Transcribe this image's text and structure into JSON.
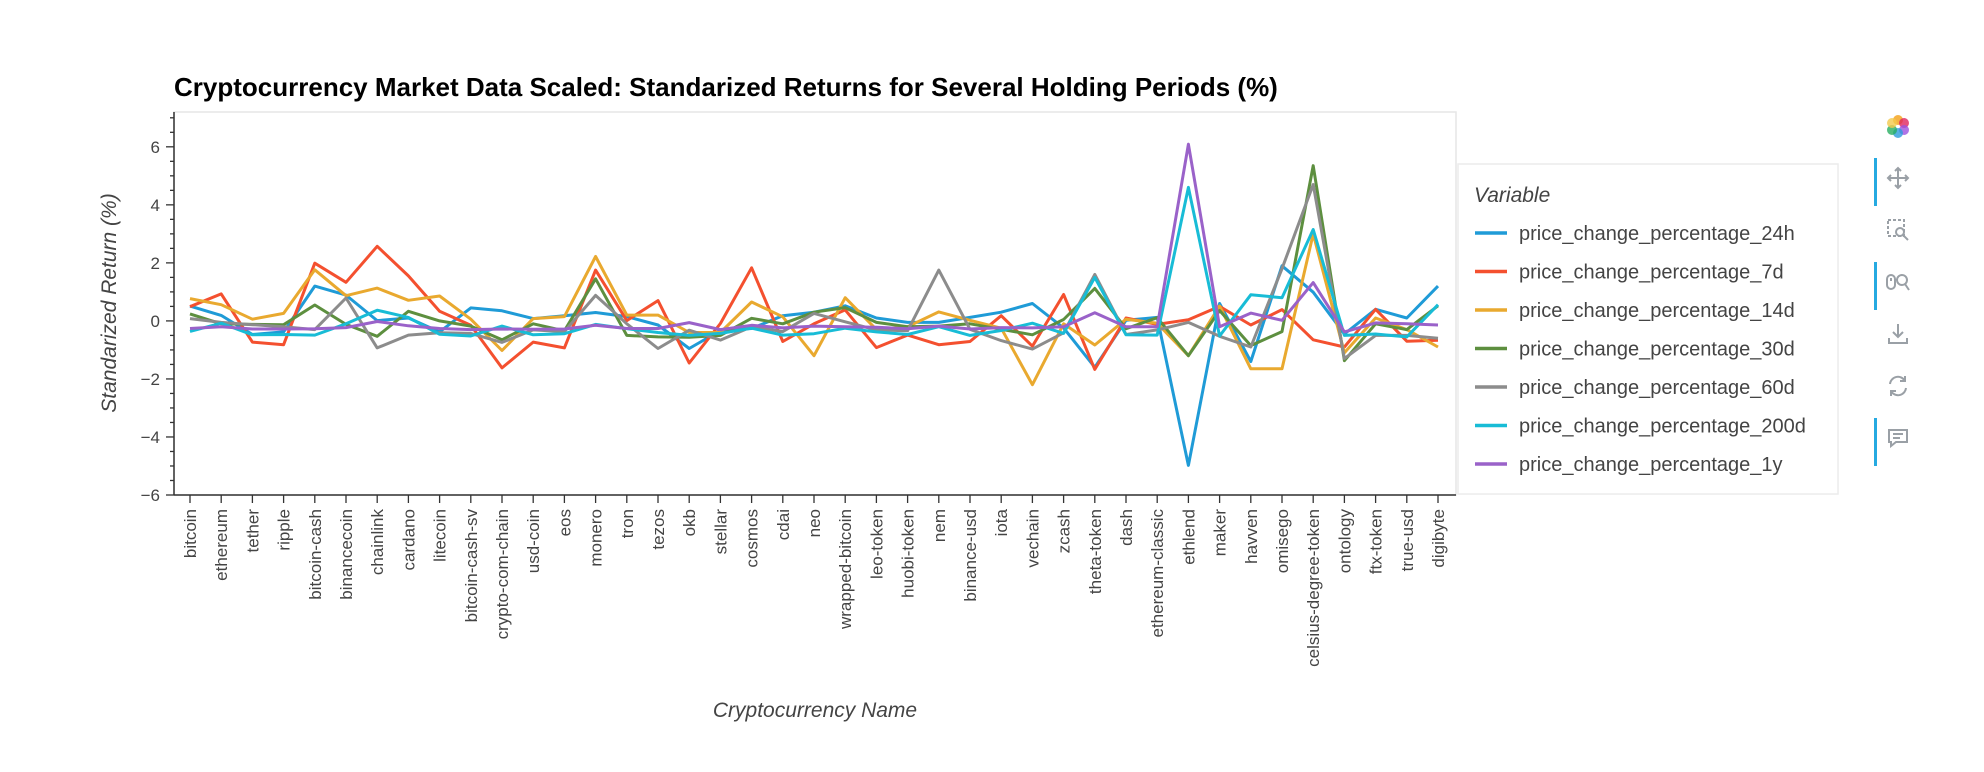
{
  "chart_data": {
    "type": "line",
    "title": "Cryptocurrency Market Data Scaled: Standarized Returns for Several Holding Periods (%)",
    "xlabel": "Cryptocurrency Name",
    "ylabel": "Standarized Return (%)",
    "ylim": [
      -6,
      7.2
    ],
    "yticks": [
      -6,
      -4,
      -2,
      0,
      2,
      4,
      6
    ],
    "grid": false,
    "legend_title": "Variable",
    "legend_position": "right",
    "categories": [
      "bitcoin",
      "ethereum",
      "tether",
      "ripple",
      "bitcoin-cash",
      "binancecoin",
      "chainlink",
      "cardano",
      "litecoin",
      "bitcoin-cash-sv",
      "crypto-com-chain",
      "usd-coin",
      "eos",
      "monero",
      "tron",
      "tezos",
      "okb",
      "stellar",
      "cosmos",
      "cdai",
      "neo",
      "wrapped-bitcoin",
      "leo-token",
      "huobi-token",
      "nem",
      "binance-usd",
      "iota",
      "vechain",
      "zcash",
      "theta-token",
      "dash",
      "ethereum-classic",
      "ethlend",
      "maker",
      "havven",
      "omisego",
      "celsius-degree-token",
      "ontology",
      "ftx-token",
      "true-usd",
      "digibyte"
    ],
    "series": [
      {
        "name": "price_change_percentage_24h",
        "color": "#1f9bd7",
        "values": [
          0.51,
          0.19,
          -0.47,
          -0.38,
          1.2,
          0.89,
          0.01,
          0.1,
          -0.38,
          0.45,
          0.35,
          0.08,
          0.18,
          0.29,
          0.15,
          -0.14,
          -0.95,
          -0.33,
          -0.26,
          0.18,
          0.3,
          0.52,
          0.1,
          -0.05,
          -0.05,
          0.12,
          0.3,
          0.6,
          -0.24,
          -1.6,
          0.02,
          0.12,
          -4.98,
          0.6,
          -1.4,
          1.9,
          0.99,
          -0.45,
          0.4,
          0.1,
          1.2
        ]
      },
      {
        "name": "price_change_percentage_7d",
        "color": "#f4502f",
        "values": [
          0.49,
          0.93,
          -0.73,
          -0.82,
          1.99,
          1.33,
          2.57,
          1.55,
          0.33,
          -0.15,
          -1.62,
          -0.73,
          -0.93,
          1.75,
          0.01,
          0.7,
          -1.45,
          -0.09,
          1.83,
          -0.71,
          -0.1,
          0.38,
          -0.92,
          -0.49,
          -0.82,
          -0.71,
          0.18,
          -0.87,
          0.91,
          -1.67,
          0.1,
          -0.12,
          0.04,
          0.5,
          -0.14,
          0.39,
          -0.65,
          -0.9,
          0.4,
          -0.7,
          -0.67
        ]
      },
      {
        "name": "price_change_percentage_14d",
        "color": "#e9a92f",
        "values": [
          0.77,
          0.56,
          0.06,
          0.26,
          1.76,
          0.87,
          1.13,
          0.71,
          0.86,
          0.06,
          -1.02,
          0.08,
          0.15,
          2.22,
          0.2,
          0.2,
          -0.4,
          -0.4,
          0.65,
          0.14,
          -1.2,
          0.8,
          -0.3,
          -0.2,
          0.31,
          0.02,
          -0.25,
          -2.2,
          -0.1,
          -0.83,
          0.06,
          -0.08,
          -1.2,
          0.51,
          -1.65,
          -1.65,
          3.0,
          -1.1,
          0.1,
          -0.3,
          -0.9
        ]
      },
      {
        "name": "price_change_percentage_30d",
        "color": "#5d8f3f",
        "values": [
          0.24,
          -0.1,
          -0.12,
          -0.13,
          0.55,
          -0.12,
          -0.53,
          0.33,
          0.0,
          -0.18,
          -0.65,
          -0.1,
          -0.34,
          1.45,
          -0.5,
          -0.55,
          -0.56,
          -0.5,
          0.09,
          -0.1,
          0.3,
          0.46,
          -0.05,
          -0.2,
          -0.18,
          -0.1,
          -0.29,
          -0.48,
          0.05,
          1.12,
          -0.27,
          0.11,
          -1.2,
          0.36,
          -0.85,
          -0.37,
          5.35,
          -1.37,
          -0.1,
          -0.3,
          0.52
        ]
      },
      {
        "name": "price_change_percentage_60d",
        "color": "#8c8c8c",
        "values": [
          0.08,
          -0.05,
          -0.13,
          -0.2,
          -0.3,
          0.79,
          -0.93,
          -0.49,
          -0.41,
          -0.43,
          -0.74,
          -0.31,
          -0.37,
          0.88,
          -0.1,
          -0.95,
          -0.32,
          -0.66,
          -0.2,
          -0.37,
          0.26,
          -0.03,
          -0.31,
          -0.34,
          1.75,
          -0.29,
          -0.68,
          -0.97,
          -0.41,
          1.6,
          -0.47,
          -0.31,
          -0.05,
          -0.53,
          -0.9,
          1.8,
          4.7,
          -1.3,
          -0.5,
          -0.5,
          -0.6
        ]
      },
      {
        "name": "price_change_percentage_200d",
        "color": "#18bcd6",
        "values": [
          -0.36,
          -0.08,
          -0.48,
          -0.47,
          -0.49,
          -0.1,
          0.37,
          0.12,
          -0.46,
          -0.52,
          -0.18,
          -0.48,
          -0.44,
          -0.12,
          -0.27,
          -0.4,
          -0.5,
          -0.43,
          -0.25,
          -0.49,
          -0.44,
          -0.25,
          -0.38,
          -0.47,
          -0.2,
          -0.5,
          -0.33,
          -0.08,
          -0.43,
          1.5,
          -0.48,
          -0.49,
          4.6,
          -0.52,
          0.9,
          0.8,
          3.15,
          -0.5,
          -0.45,
          -0.55,
          0.56
        ]
      },
      {
        "name": "price_change_percentage_1y",
        "color": "#9a62c9",
        "values": [
          -0.26,
          -0.2,
          -0.28,
          -0.28,
          -0.27,
          -0.23,
          -0.02,
          -0.17,
          -0.26,
          -0.3,
          -0.28,
          -0.29,
          -0.28,
          -0.15,
          -0.26,
          -0.26,
          -0.06,
          -0.3,
          -0.15,
          -0.24,
          -0.18,
          -0.2,
          -0.22,
          -0.27,
          -0.18,
          -0.28,
          -0.23,
          -0.24,
          -0.2,
          0.28,
          -0.2,
          -0.2,
          6.09,
          -0.2,
          0.27,
          0.02,
          1.32,
          -0.38,
          -0.07,
          -0.1,
          -0.14
        ]
      }
    ]
  },
  "toolbar": {
    "tools": [
      {
        "name": "bokeh-logo-icon",
        "active": false
      },
      {
        "name": "pan-icon",
        "active": true
      },
      {
        "name": "box-zoom-icon",
        "active": false
      },
      {
        "name": "wheel-zoom-icon",
        "active": true
      },
      {
        "name": "save-icon",
        "active": false
      },
      {
        "name": "reset-icon",
        "active": false
      },
      {
        "name": "hover-icon",
        "active": true
      }
    ]
  }
}
